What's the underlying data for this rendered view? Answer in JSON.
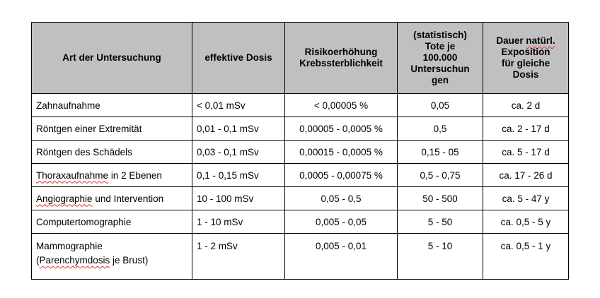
{
  "headers": [
    "Art der Untersuchung",
    "effektive Dosis",
    "Risikoerhöhung Krebssterblichkeit",
    "(statistisch) Tote je 100.000 Untersuchun gen",
    "Dauer natürl. Exposition für gleiche Dosis"
  ],
  "header_parts": {
    "h4a": "(statistisch)",
    "h4b": "Tote je",
    "h4c": "100.000",
    "h4d": "Untersuchun",
    "h4e": "gen",
    "h5a": "Dauer ",
    "h5b": "natürl.",
    "h5c": "Exposition",
    "h5d": "für gleiche",
    "h5e": "Dosis",
    "h3a": "Risikoerhöhung",
    "h3b": "Krebssterblichkeit"
  },
  "rows": [
    {
      "exam": "Zahnaufnahme",
      "dose": "< 0,01 mSv",
      "risk": "< 0,00005 %",
      "deaths": "0,05",
      "duration": "ca. 2 d"
    },
    {
      "exam": "Röntgen einer Extremität",
      "dose": "0,01 - 0,1 mSv",
      "risk": "0,00005 - 0,0005 %",
      "deaths": "0,5",
      "duration": "ca. 2 - 17 d"
    },
    {
      "exam": "Röntgen des Schädels",
      "dose": "0,03 - 0,1 mSv",
      "risk": "0,00015 - 0,0005 %",
      "deaths": "0,15 - 05",
      "duration": "ca. 5 - 17 d"
    },
    {
      "exam_a": "Thoraxaufnahme",
      "exam_b": " in 2 Ebenen",
      "dose": "0,1 - 0,15 mSv",
      "risk": "0,0005 - 0,00075 %",
      "deaths": "0,5 - 0,75",
      "duration": "ca. 17 - 26 d"
    },
    {
      "exam_a": "Angiographie",
      "exam_b": " und Intervention",
      "dose": "10 - 100 mSv",
      "risk": "0,05 - 0,5",
      "deaths": "50 - 500",
      "duration": "ca. 5 - 47 y"
    },
    {
      "exam": "Computertomographie",
      "dose": "1 - 10 mSv",
      "risk": "0,005 - 0,05",
      "deaths": "5 - 50",
      "duration": "ca. 0,5 - 5 y"
    },
    {
      "exam_a": "Mammographie",
      "exam_b": "(",
      "exam_c": "Parenchymdosis",
      "exam_d": " je Brust)",
      "dose": "1 - 2 mSv",
      "risk": "0,005 - 0,01",
      "deaths": "5 - 10",
      "duration": "ca. 0,5 - 1 y"
    }
  ]
}
